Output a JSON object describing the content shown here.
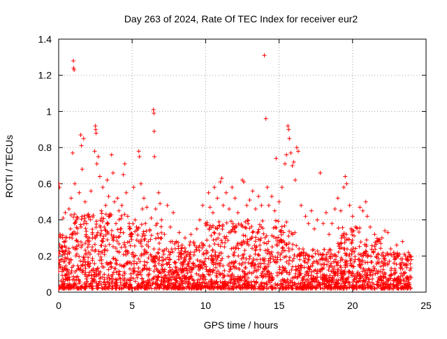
{
  "chart_data": {
    "type": "scatter",
    "title": "Day 263 of 2024, Rate Of TEC Index for receiver eur2",
    "xlabel": "GPS time / hours",
    "ylabel": "ROTI / TECUs",
    "xlim": [
      0,
      25
    ],
    "ylim": [
      0,
      1.4
    ],
    "x_ticks": [
      0,
      5,
      10,
      15,
      20,
      25
    ],
    "x_tick_labels": [
      "0",
      "5",
      "10",
      "15",
      "20",
      "25"
    ],
    "y_ticks": [
      0,
      0.2,
      0.4,
      0.6,
      0.8,
      1.0,
      1.2,
      1.4
    ],
    "y_tick_labels": [
      "0",
      "0.2",
      "0.4",
      "0.6",
      "0.8",
      "1",
      "1.2",
      "1.4"
    ],
    "grid": true,
    "legend": "none",
    "marker": "plus",
    "series": [
      {
        "name": "ROTI",
        "color": "#ff0000",
        "points": [
          [
            0.02,
            0.6
          ],
          [
            0.05,
            0.58
          ],
          [
            0.1,
            0.32
          ],
          [
            0.15,
            0.18
          ],
          [
            0.2,
            0.25
          ],
          [
            0.3,
            0.41
          ],
          [
            0.35,
            0.12
          ],
          [
            0.45,
            0.44
          ],
          [
            0.5,
            0.3
          ],
          [
            0.6,
            0.21
          ],
          [
            0.7,
            0.46
          ],
          [
            0.8,
            0.35
          ],
          [
            0.85,
            0.52
          ],
          [
            0.95,
            0.77
          ],
          [
            1.0,
            1.28
          ],
          [
            1.02,
            1.24
          ],
          [
            1.05,
            1.23
          ],
          [
            1.1,
            0.6
          ],
          [
            1.2,
            0.4
          ],
          [
            1.3,
            0.28
          ],
          [
            1.4,
            0.55
          ],
          [
            1.5,
            0.87
          ],
          [
            1.55,
            0.81
          ],
          [
            1.6,
            0.68
          ],
          [
            1.7,
            0.85
          ],
          [
            1.8,
            0.5
          ],
          [
            1.9,
            0.38
          ],
          [
            2.0,
            0.3
          ],
          [
            2.1,
            0.42
          ],
          [
            2.2,
            0.56
          ],
          [
            2.3,
            0.33
          ],
          [
            2.45,
            0.78
          ],
          [
            2.5,
            0.92
          ],
          [
            2.52,
            0.9
          ],
          [
            2.55,
            0.88
          ],
          [
            2.6,
            0.71
          ],
          [
            2.7,
            0.75
          ],
          [
            2.8,
            0.64
          ],
          [
            2.9,
            0.45
          ],
          [
            3.0,
            0.58
          ],
          [
            3.1,
            0.36
          ],
          [
            3.2,
            0.48
          ],
          [
            3.3,
            0.62
          ],
          [
            3.4,
            0.53
          ],
          [
            3.5,
            0.42
          ],
          [
            3.6,
            0.76
          ],
          [
            3.7,
            0.66
          ],
          [
            3.8,
            0.5
          ],
          [
            3.9,
            0.38
          ],
          [
            4.0,
            0.52
          ],
          [
            4.1,
            0.45
          ],
          [
            4.2,
            0.35
          ],
          [
            4.3,
            0.48
          ],
          [
            4.4,
            0.65
          ],
          [
            4.5,
            0.71
          ],
          [
            4.6,
            0.55
          ],
          [
            4.7,
            0.42
          ],
          [
            4.8,
            0.38
          ],
          [
            5.0,
            0.32
          ],
          [
            5.1,
            0.58
          ],
          [
            5.2,
            0.4
          ],
          [
            5.3,
            0.36
          ],
          [
            5.45,
            0.78
          ],
          [
            5.5,
            0.75
          ],
          [
            5.6,
            0.6
          ],
          [
            5.7,
            0.46
          ],
          [
            5.8,
            0.52
          ],
          [
            5.9,
            0.38
          ],
          [
            6.0,
            0.47
          ],
          [
            6.1,
            0.28
          ],
          [
            6.2,
            0.34
          ],
          [
            6.3,
            0.41
          ],
          [
            6.45,
            1.01
          ],
          [
            6.48,
            0.99
          ],
          [
            6.5,
            0.89
          ],
          [
            6.52,
            0.75
          ],
          [
            6.6,
            0.46
          ],
          [
            6.7,
            0.38
          ],
          [
            6.8,
            0.55
          ],
          [
            6.9,
            0.49
          ],
          [
            7.0,
            0.4
          ],
          [
            7.2,
            0.32
          ],
          [
            7.4,
            0.48
          ],
          [
            7.6,
            0.36
          ],
          [
            7.8,
            0.44
          ],
          [
            8.0,
            0.28
          ],
          [
            8.2,
            0.33
          ],
          [
            8.4,
            0.26
          ],
          [
            8.6,
            0.3
          ],
          [
            8.8,
            0.22
          ],
          [
            9.0,
            0.32
          ],
          [
            9.2,
            0.27
          ],
          [
            9.4,
            0.35
          ],
          [
            9.6,
            0.4
          ],
          [
            9.8,
            0.48
          ],
          [
            10.0,
            0.38
          ],
          [
            10.2,
            0.55
          ],
          [
            10.3,
            0.47
          ],
          [
            10.5,
            0.44
          ],
          [
            10.6,
            0.58
          ],
          [
            10.8,
            0.52
          ],
          [
            11.0,
            0.61
          ],
          [
            11.1,
            0.63
          ],
          [
            11.2,
            0.48
          ],
          [
            11.4,
            0.55
          ],
          [
            11.6,
            0.46
          ],
          [
            11.8,
            0.58
          ],
          [
            12.0,
            0.52
          ],
          [
            12.2,
            0.44
          ],
          [
            12.5,
            0.62
          ],
          [
            12.6,
            0.61
          ],
          [
            12.8,
            0.48
          ],
          [
            13.0,
            0.51
          ],
          [
            13.2,
            0.56
          ],
          [
            13.4,
            0.46
          ],
          [
            13.6,
            0.53
          ],
          [
            13.8,
            0.48
          ],
          [
            14.0,
            1.31
          ],
          [
            14.1,
            0.96
          ],
          [
            14.2,
            0.58
          ],
          [
            14.3,
            0.48
          ],
          [
            14.5,
            0.53
          ],
          [
            14.7,
            0.45
          ],
          [
            14.8,
            0.74
          ],
          [
            15.0,
            0.5
          ],
          [
            15.2,
            0.58
          ],
          [
            15.4,
            0.71
          ],
          [
            15.5,
            0.76
          ],
          [
            15.6,
            0.92
          ],
          [
            15.65,
            0.9
          ],
          [
            15.7,
            0.85
          ],
          [
            15.8,
            0.77
          ],
          [
            15.9,
            0.7
          ],
          [
            16.0,
            0.72
          ],
          [
            16.1,
            0.62
          ],
          [
            16.2,
            0.8
          ],
          [
            16.3,
            0.78
          ],
          [
            16.5,
            0.48
          ],
          [
            16.8,
            0.42
          ],
          [
            17.0,
            0.38
          ],
          [
            17.2,
            0.45
          ],
          [
            17.4,
            0.35
          ],
          [
            17.6,
            0.4
          ],
          [
            17.8,
            0.66
          ],
          [
            18.0,
            0.38
          ],
          [
            18.2,
            0.44
          ],
          [
            18.4,
            0.32
          ],
          [
            18.6,
            0.38
          ],
          [
            18.8,
            0.46
          ],
          [
            19.0,
            0.52
          ],
          [
            19.2,
            0.45
          ],
          [
            19.4,
            0.58
          ],
          [
            19.5,
            0.64
          ],
          [
            19.6,
            0.6
          ],
          [
            19.8,
            0.48
          ],
          [
            20.0,
            0.42
          ],
          [
            20.2,
            0.36
          ],
          [
            20.5,
            0.47
          ],
          [
            20.7,
            0.45
          ],
          [
            20.9,
            0.5
          ],
          [
            21.0,
            0.42
          ],
          [
            21.2,
            0.36
          ],
          [
            21.5,
            0.32
          ],
          [
            21.8,
            0.28
          ],
          [
            22.0,
            0.3
          ],
          [
            22.2,
            0.34
          ],
          [
            22.4,
            0.33
          ],
          [
            22.6,
            0.24
          ],
          [
            22.8,
            0.22
          ],
          [
            23.0,
            0.26
          ],
          [
            23.2,
            0.21
          ],
          [
            23.4,
            0.28
          ],
          [
            23.6,
            0.2
          ],
          [
            23.8,
            0.22
          ],
          [
            24.0,
            0.18
          ]
        ]
      }
    ]
  }
}
